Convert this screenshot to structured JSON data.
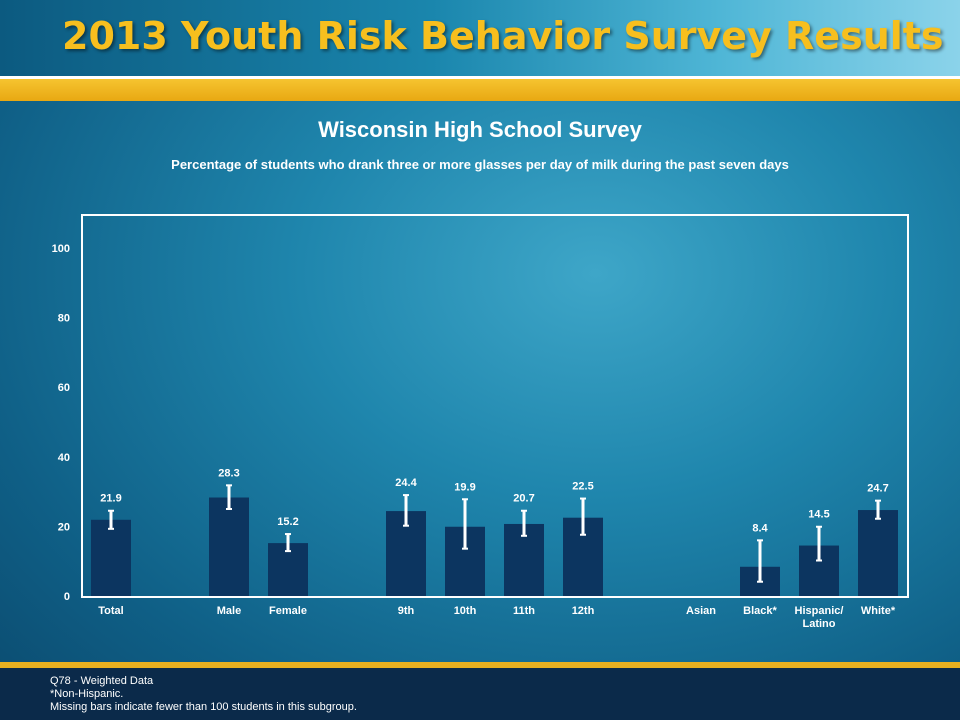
{
  "header": {
    "title": "2013 Youth Risk Behavior Survey Results"
  },
  "chart_data": {
    "type": "bar",
    "title": "Wisconsin High School Survey",
    "subtitle": "Percentage of students who drank three or more glasses per day of milk during the past seven days",
    "ylim": [
      0,
      100
    ],
    "yticks": [
      0,
      20,
      40,
      60,
      80,
      100
    ],
    "grid": false,
    "bar_color": "#0c3560",
    "error_bar_color": "#ffffff",
    "categories": [
      {
        "label": [
          "Total"
        ],
        "value": 21.9,
        "ci": [
          19.3,
          24.5
        ]
      },
      {
        "label": [
          "Male"
        ],
        "value": 28.3,
        "ci": [
          25.0,
          31.8
        ]
      },
      {
        "label": [
          "Female"
        ],
        "value": 15.2,
        "ci": [
          12.9,
          17.8
        ]
      },
      {
        "label": [
          "9th"
        ],
        "value": 24.4,
        "ci": [
          20.2,
          29.0
        ]
      },
      {
        "label": [
          "10th"
        ],
        "value": 19.9,
        "ci": [
          13.6,
          27.8
        ]
      },
      {
        "label": [
          "11th"
        ],
        "value": 20.7,
        "ci": [
          17.3,
          24.5
        ]
      },
      {
        "label": [
          "12th"
        ],
        "value": 22.5,
        "ci": [
          17.6,
          28.0
        ]
      },
      {
        "label": [
          "Asian"
        ],
        "value": null,
        "ci": null
      },
      {
        "label": [
          "Black*"
        ],
        "value": 8.4,
        "ci": [
          4.1,
          16.0
        ]
      },
      {
        "label": [
          "Hispanic/",
          "Latino"
        ],
        "value": 14.5,
        "ci": [
          10.2,
          19.9
        ]
      },
      {
        "label": [
          "White*"
        ],
        "value": 24.7,
        "ci": [
          22.2,
          27.4
        ]
      }
    ]
  },
  "footer": {
    "notes": [
      "Q78 - Weighted Data",
      "*Non-Hispanic.",
      "Missing bars indicate fewer than 100 students in this subgroup."
    ]
  }
}
